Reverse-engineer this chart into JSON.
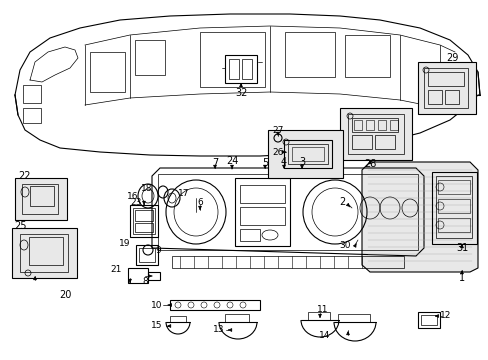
{
  "background_color": "#ffffff",
  "line_color": "#000000",
  "fig_width": 4.89,
  "fig_height": 3.6,
  "dpi": 100,
  "gray_fill": "#d8d8d8",
  "light_gray": "#e8e8e8"
}
